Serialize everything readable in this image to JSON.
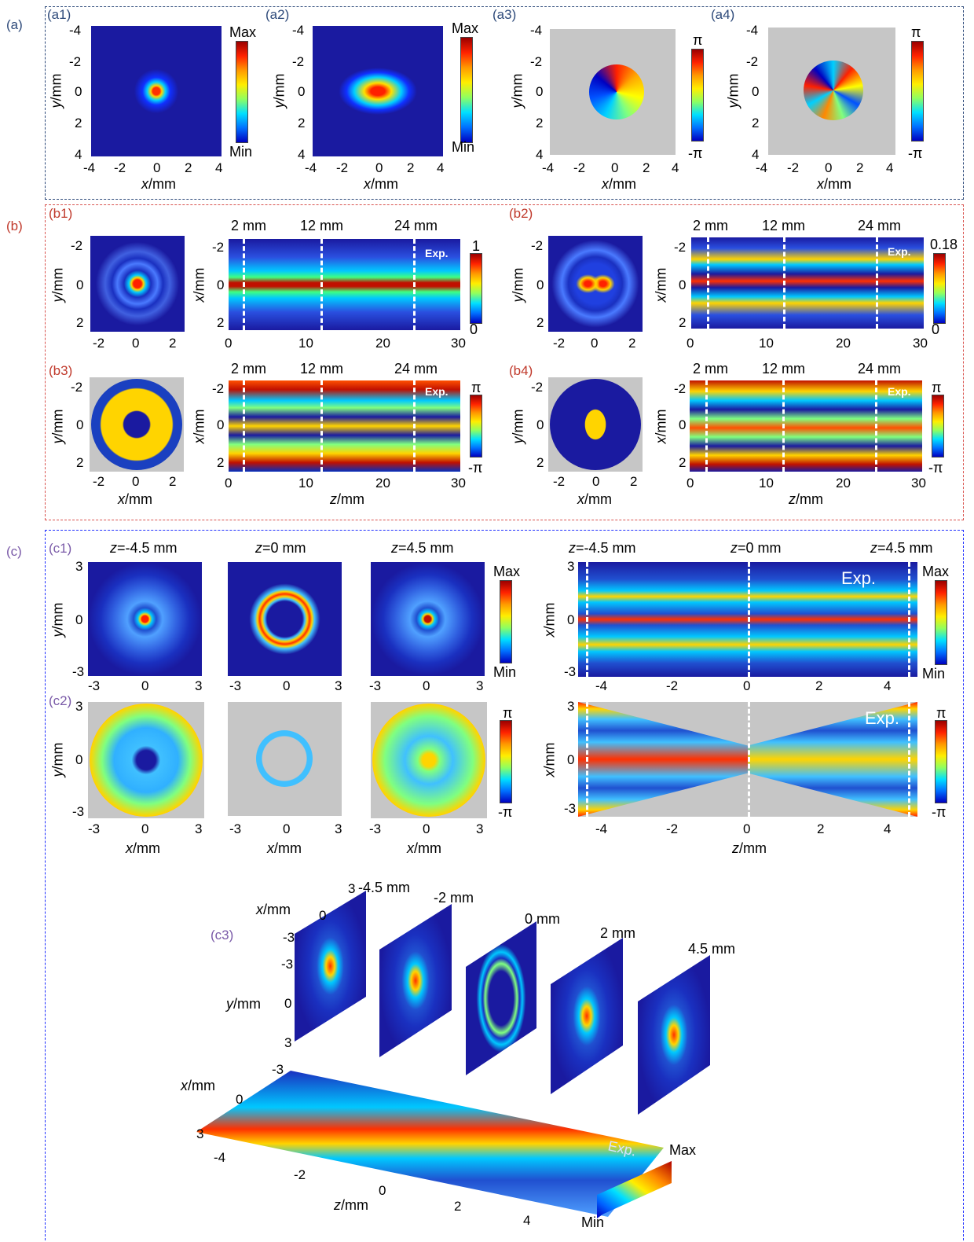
{
  "panels": {
    "a": "(a)",
    "b": "(b)",
    "c": "(c)",
    "a1": "(a1)",
    "a2": "(a2)",
    "a3": "(a3)",
    "a4": "(a4)",
    "b1": "(b1)",
    "b2": "(b2)",
    "b3": "(b3)",
    "b4": "(b4)",
    "c1": "(c1)",
    "c2": "(c2)",
    "c3": "(c3)"
  },
  "labels": {
    "ymm": "y/mm",
    "xmm": "x/mm",
    "zmm": "z/mm",
    "max": "Max",
    "min": "Min",
    "pi": "π",
    "neg_pi": "-π",
    "one": "1",
    "zero": "0",
    "p18": "0.18",
    "exp": "Exp.",
    "mm2": "2 mm",
    "mm12": "12 mm",
    "mm24": "24 mm",
    "zneg45": "z=-4.5 mm",
    "z0": "z=0 mm",
    "z45": "z=4.5 mm",
    "c3_neg45": "-4.5 mm",
    "c3_neg2": "-2 mm",
    "c3_0": "0 mm",
    "c3_2": "2 mm",
    "c3_45": "4.5 mm"
  },
  "ticks": {
    "a_y": [
      "-4",
      "-2",
      "0",
      "2",
      "4"
    ],
    "a_x": [
      "-4",
      "-2",
      "0",
      "2",
      "4"
    ],
    "b_small": [
      "-2",
      "0",
      "2"
    ],
    "b_z": [
      "0",
      "10",
      "20",
      "30"
    ],
    "c_3": [
      "-3",
      "0",
      "3"
    ],
    "c_z": [
      "-4",
      "-2",
      "0",
      "2",
      "4"
    ],
    "c_y3": [
      "3",
      "0",
      "-3"
    ],
    "c3_x": [
      "3",
      "0",
      "-3"
    ],
    "c3_y": [
      "-3",
      "0",
      "3"
    ],
    "c3_base_x": [
      "-3",
      "0",
      "3"
    ],
    "c3_base_z": [
      "-4",
      "-2",
      "0",
      "2",
      "4"
    ]
  },
  "colors": {
    "panel_a": "#2e4a7a",
    "panel_b": "#d9534f",
    "panel_c": "#1f2fff",
    "label_a": "#2e4a7a",
    "label_b": "#c0392b",
    "label_c": "#7a5aa8"
  }
}
